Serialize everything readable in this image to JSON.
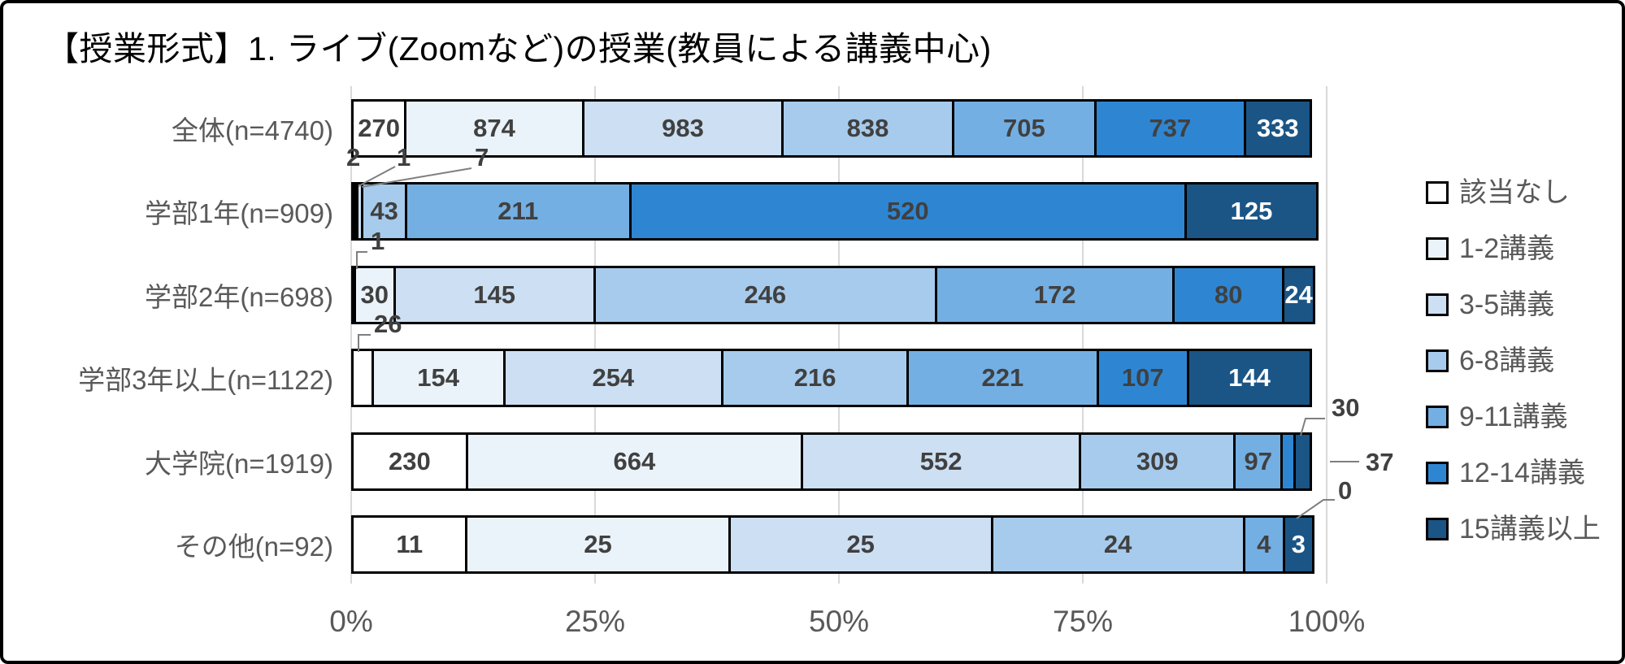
{
  "title": "【授業形式】1. ライブ(Zoomなど)の授業(教員による講義中心)",
  "chart_data": {
    "type": "bar",
    "variant": "100pct-stacked-horizontal",
    "title": "【授業形式】1. ライブ(Zoomなど)の授業(教員による講義中心)",
    "categories": [
      "全体(n=4740)",
      "学部1年(n=909)",
      "学部2年(n=698)",
      "学部3年以上(n=1122)",
      "大学院(n=1919)",
      "その他(n=92)"
    ],
    "totals": [
      4740,
      909,
      698,
      1122,
      1919,
      92
    ],
    "series": [
      {
        "name": "該当なし",
        "color": "#FFFFFF",
        "values": [
          270,
          2,
          1,
          26,
          230,
          11
        ]
      },
      {
        "name": "1-2講義",
        "color": "#EBF3FA",
        "values": [
          874,
          1,
          30,
          154,
          664,
          25
        ]
      },
      {
        "name": "3-5講義",
        "color": "#CDDFF2",
        "values": [
          983,
          7,
          145,
          254,
          552,
          25
        ]
      },
      {
        "name": "6-8講義",
        "color": "#A7CBEC",
        "values": [
          838,
          43,
          246,
          216,
          309,
          24
        ]
      },
      {
        "name": "9-11講義",
        "color": "#74AFE3",
        "values": [
          705,
          211,
          172,
          221,
          97,
          4
        ]
      },
      {
        "name": "12-14講義",
        "color": "#2E86D3",
        "values": [
          737,
          520,
          80,
          107,
          30,
          0
        ]
      },
      {
        "name": "15講義以上",
        "color": "#1A5586",
        "values": [
          333,
          125,
          24,
          144,
          37,
          3
        ],
        "label_on_dark": true
      }
    ],
    "x_ticks": [
      "0%",
      "25%",
      "50%",
      "75%",
      "100%"
    ],
    "xlim": [
      0,
      100
    ],
    "legend_position": "right",
    "gridlines": true
  },
  "colors": {
    "grid": "#D9D9D9",
    "axis_text": "#595959",
    "category_text": "#595959",
    "value_text": "#404040",
    "value_text_on_dark": "#FFFFFF",
    "segment_border": "#000000",
    "leader_line": "#7F7F7F",
    "legend_text": "#595959",
    "frame_border": "#000000"
  }
}
